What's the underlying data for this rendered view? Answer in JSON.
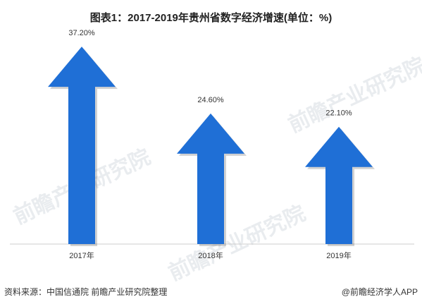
{
  "title": "图表1：2017-2019年贵州省数字经济增速(单位：%)",
  "chart_data": {
    "type": "bar",
    "categories": [
      "2017年",
      "2018年",
      "2019年"
    ],
    "values": [
      37.2,
      24.6,
      22.1
    ],
    "data_labels": [
      "37.20%",
      "24.60%",
      "22.10%"
    ],
    "ylim": [
      0,
      40
    ],
    "grid": false,
    "bar_style": "up-arrow",
    "bar_color": "#1f6fd6"
  },
  "watermark": "前瞻产业研究院",
  "footer": {
    "source": "资料来源：中国信通院 前瞻产业研究院整理",
    "brand": "@前瞻经济学人APP"
  }
}
